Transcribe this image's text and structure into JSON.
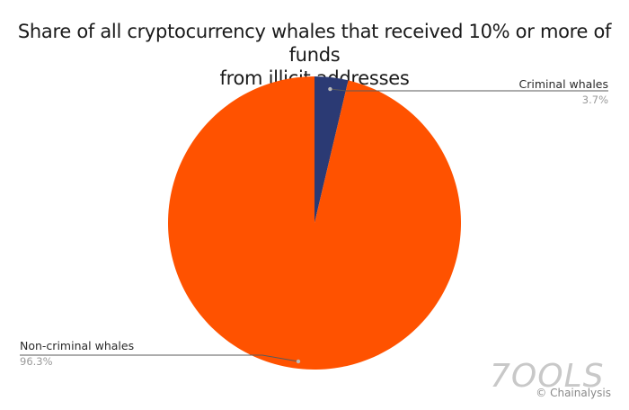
{
  "chart_data": {
    "type": "pie",
    "title_line1": "Share of all cryptocurrency whales that received 10% or more of funds",
    "title_line2": "from illicit addresses",
    "slices": [
      {
        "label": "Criminal whales",
        "value": 3.7,
        "value_label": "3.7%",
        "color": "#2b3a74"
      },
      {
        "label": "Non-criminal whales",
        "value": 96.3,
        "value_label": "96.3%",
        "color": "#ff5200"
      }
    ],
    "legend": "none"
  },
  "watermark": "7OOLS",
  "credit": "© Chainalysis",
  "colors": {
    "criminal": "#2b3a74",
    "non_criminal": "#ff5200",
    "leader_line": "#5a5a5a",
    "value_text": "#9a9a9a"
  }
}
